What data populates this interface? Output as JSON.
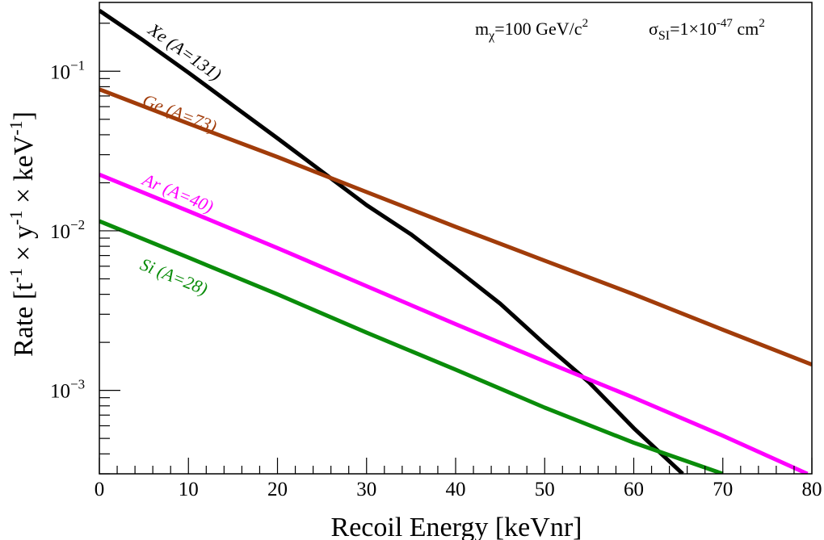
{
  "chart_data": {
    "type": "line",
    "title": "",
    "xlabel": "Recoil Energy [keVnr]",
    "ylabel": "Rate [t-1 × y-1 × keV-1]",
    "ylabel_parts": {
      "prefix": "Rate [t",
      "sup1": "-1",
      "mid1": " × y",
      "sup2": "-1",
      "mid2": " × keV",
      "sup3": "-1",
      "suffix": "]"
    },
    "xlim": [
      0,
      80
    ],
    "ylim": [
      0.0003,
      0.27
    ],
    "yscale": "log",
    "x_ticks": [
      "0",
      "10",
      "20",
      "30",
      "40",
      "50",
      "60",
      "70",
      "80"
    ],
    "y_ticks": [
      {
        "value": 0.1,
        "base": "10",
        "exp": "−1"
      },
      {
        "value": 0.01,
        "base": "10",
        "exp": "−2"
      },
      {
        "value": 0.001,
        "base": "10",
        "exp": "−3"
      }
    ],
    "grid": false,
    "annotation": {
      "mass_prefix": "m",
      "mass_sub": "χ",
      "mass_value": "=100 GeV/c",
      "mass_sup": "2",
      "xs_prefix": "σ",
      "xs_sub": "SI",
      "xs_value": "=1×10",
      "xs_sup": "-47",
      "xs_unit": " cm",
      "xs_unit_sup": "2"
    },
    "series": [
      {
        "name": "Xe (A=131)",
        "color": "#000000",
        "label_pos": "upper-left",
        "x": [
          0,
          5,
          10,
          15,
          20,
          25,
          30,
          35,
          40,
          45,
          50,
          55,
          60,
          65.5
        ],
        "y": [
          0.24,
          0.155,
          0.098,
          0.061,
          0.038,
          0.0235,
          0.0145,
          0.0095,
          0.0058,
          0.0035,
          0.00195,
          0.00112,
          0.00058,
          0.0003
        ]
      },
      {
        "name": "Ge (A=73)",
        "color": "#a13c0a",
        "label_pos": "upper-left",
        "x": [
          0,
          10,
          20,
          30,
          40,
          50,
          60,
          70,
          80
        ],
        "y": [
          0.077,
          0.047,
          0.029,
          0.0175,
          0.0106,
          0.0065,
          0.004,
          0.0024,
          0.00145
        ]
      },
      {
        "name": "Ar (A=40)",
        "color": "#ff00ff",
        "label_pos": "left",
        "x": [
          0,
          10,
          20,
          30,
          40,
          50,
          60,
          70,
          79.5
        ],
        "y": [
          0.0225,
          0.0133,
          0.0078,
          0.0045,
          0.0026,
          0.00152,
          0.0009,
          0.00052,
          0.0003
        ]
      },
      {
        "name": "Si (A=28)",
        "color": "#0a8c0a",
        "label_pos": "left",
        "x": [
          0,
          10,
          20,
          30,
          40,
          50,
          60,
          70
        ],
        "y": [
          0.0115,
          0.0068,
          0.004,
          0.0023,
          0.00135,
          0.00078,
          0.00047,
          0.0003
        ]
      }
    ]
  }
}
